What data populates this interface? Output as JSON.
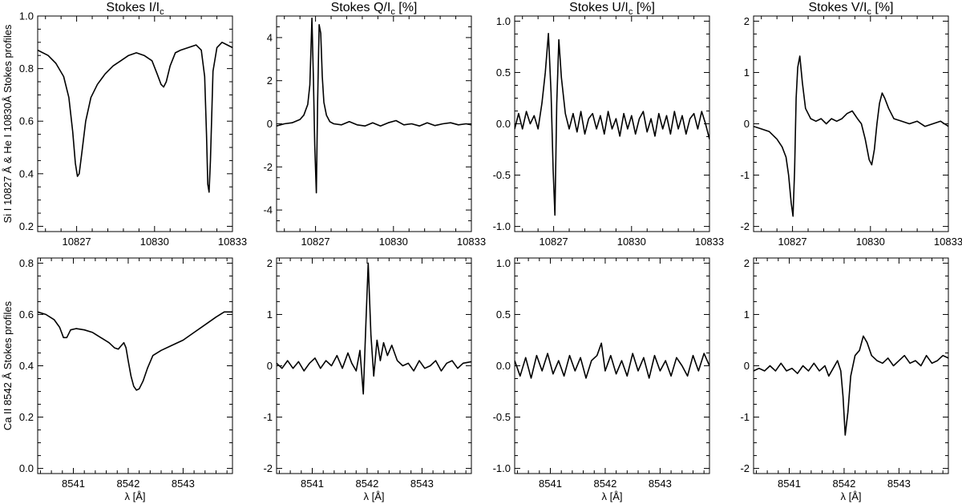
{
  "figure": {
    "row_labels": [
      "Si I 10827 Å & He I 10830Å Stokes profiles",
      "Ca II 8542 Å Stokes profiles"
    ],
    "column_titles": [
      {
        "main": "Stokes I/I",
        "sub": "c",
        "suffix": ""
      },
      {
        "main": "Stokes Q/I",
        "sub": "c",
        "suffix": " [%]"
      },
      {
        "main": "Stokes U/I",
        "sub": "c",
        "suffix": " [%]"
      },
      {
        "main": "Stokes V/I",
        "sub": "c",
        "suffix": " [%]"
      }
    ],
    "bottom_xlabel": "λ [Å]"
  },
  "chart_data": [
    {
      "id": "p00",
      "type": "line",
      "row": 0,
      "col": 0,
      "xlim": [
        10825.5,
        10833
      ],
      "ylim": [
        0.18,
        1.0
      ],
      "xticks": [
        10827,
        10830,
        10833
      ],
      "yticks": [
        0.2,
        0.4,
        0.6,
        0.8,
        1.0
      ],
      "xticklabels": [
        "10827",
        "10830",
        "10833"
      ],
      "yticklabels": [
        "0.2",
        "0.4",
        "0.6",
        "0.8",
        "1.0"
      ],
      "x": [
        10825.5,
        10825.9,
        10826.2,
        10826.5,
        10826.7,
        10826.85,
        10826.95,
        10827.03,
        10827.1,
        10827.2,
        10827.35,
        10827.55,
        10827.8,
        10828.1,
        10828.4,
        10828.7,
        10829.0,
        10829.3,
        10829.6,
        10829.9,
        10830.1,
        10830.25,
        10830.35,
        10830.45,
        10830.6,
        10830.8,
        10831.0,
        10831.3,
        10831.6,
        10831.8,
        10831.93,
        10832.0,
        10832.05,
        10832.1,
        10832.15,
        10832.25,
        10832.4,
        10832.6,
        10832.8,
        10833.0
      ],
      "y": [
        0.87,
        0.85,
        0.82,
        0.77,
        0.69,
        0.56,
        0.44,
        0.39,
        0.4,
        0.48,
        0.6,
        0.69,
        0.74,
        0.78,
        0.81,
        0.83,
        0.85,
        0.86,
        0.85,
        0.83,
        0.78,
        0.74,
        0.73,
        0.75,
        0.81,
        0.86,
        0.87,
        0.88,
        0.89,
        0.87,
        0.77,
        0.55,
        0.36,
        0.33,
        0.45,
        0.79,
        0.88,
        0.9,
        0.89,
        0.88
      ]
    },
    {
      "id": "p01",
      "type": "line",
      "row": 0,
      "col": 1,
      "xlim": [
        10825.5,
        10833
      ],
      "ylim": [
        -5.0,
        5.0
      ],
      "xticks": [
        10827,
        10830,
        10833
      ],
      "yticks": [
        -4,
        -2,
        0,
        2,
        4
      ],
      "xticklabels": [
        "10827",
        "10830",
        "10833"
      ],
      "yticklabels": [
        "-4",
        "-2",
        "0",
        "2",
        "4"
      ],
      "x": [
        10825.5,
        10825.8,
        10826.1,
        10826.4,
        10826.55,
        10826.7,
        10826.78,
        10826.86,
        10826.92,
        10826.97,
        10827.03,
        10827.08,
        10827.14,
        10827.2,
        10827.26,
        10827.32,
        10827.42,
        10827.55,
        10827.7,
        10828.0,
        10828.3,
        10828.6,
        10828.9,
        10829.2,
        10829.5,
        10829.8,
        10830.1,
        10830.4,
        10830.7,
        10831.0,
        10831.3,
        10831.6,
        10831.9,
        10832.2,
        10832.5,
        10832.8,
        10833.0
      ],
      "y": [
        -0.1,
        0.0,
        0.05,
        0.2,
        0.4,
        0.9,
        1.8,
        4.9,
        2.0,
        -1.0,
        -3.2,
        1.0,
        4.6,
        4.2,
        2.2,
        1.0,
        0.4,
        0.1,
        0.0,
        -0.05,
        0.1,
        -0.05,
        -0.1,
        0.05,
        -0.1,
        0.05,
        0.15,
        -0.05,
        0.0,
        -0.1,
        0.05,
        -0.08,
        0.0,
        0.05,
        -0.05,
        0.0,
        -0.05
      ]
    },
    {
      "id": "p02",
      "type": "line",
      "row": 0,
      "col": 2,
      "xlim": [
        10825.5,
        10833
      ],
      "ylim": [
        -1.05,
        1.05
      ],
      "xticks": [
        10827,
        10830,
        10833
      ],
      "yticks": [
        -1.0,
        -0.5,
        0.0,
        0.5,
        1.0
      ],
      "xticklabels": [
        "10827",
        "10830",
        "10833"
      ],
      "yticklabels": [
        "-1.0",
        "-0.5",
        "0.0",
        "0.5",
        "1.0"
      ],
      "x": [
        10825.5,
        10825.65,
        10825.8,
        10825.95,
        10826.1,
        10826.25,
        10826.4,
        10826.55,
        10826.68,
        10826.8,
        10826.9,
        10826.98,
        10827.05,
        10827.12,
        10827.2,
        10827.3,
        10827.45,
        10827.6,
        10827.75,
        10827.9,
        10828.05,
        10828.2,
        10828.35,
        10828.5,
        10828.65,
        10828.8,
        10828.95,
        10829.1,
        10829.25,
        10829.4,
        10829.55,
        10829.7,
        10829.85,
        10830.0,
        10830.15,
        10830.3,
        10830.45,
        10830.6,
        10830.75,
        10830.9,
        10831.05,
        10831.2,
        10831.35,
        10831.5,
        10831.65,
        10831.8,
        10831.95,
        10832.1,
        10832.25,
        10832.4,
        10832.55,
        10832.7,
        10832.85,
        10833.0
      ],
      "y": [
        -0.05,
        0.1,
        -0.05,
        0.12,
        0.0,
        0.08,
        -0.05,
        0.2,
        0.5,
        0.88,
        0.3,
        -0.45,
        -0.89,
        0.2,
        0.82,
        0.45,
        0.1,
        -0.05,
        0.1,
        -0.08,
        0.12,
        -0.1,
        0.05,
        0.1,
        -0.05,
        0.08,
        -0.1,
        0.12,
        -0.05,
        0.05,
        -0.12,
        0.1,
        -0.05,
        0.08,
        -0.1,
        0.05,
        0.12,
        -0.08,
        0.05,
        -0.12,
        0.1,
        -0.05,
        0.08,
        -0.1,
        0.12,
        -0.05,
        0.08,
        -0.1,
        0.05,
        0.1,
        -0.05,
        0.12,
        0.0,
        -0.15
      ]
    },
    {
      "id": "p03",
      "type": "line",
      "row": 0,
      "col": 3,
      "xlim": [
        10825.5,
        10833
      ],
      "ylim": [
        -2.1,
        2.1
      ],
      "xticks": [
        10827,
        10830,
        10833
      ],
      "yticks": [
        -2,
        -1,
        0,
        1,
        2
      ],
      "xticklabels": [
        "10827",
        "10830",
        "10833"
      ],
      "yticklabels": [
        "-2",
        "-1",
        "0",
        "1",
        "2"
      ],
      "x": [
        10825.5,
        10825.8,
        10826.1,
        10826.4,
        10826.6,
        10826.75,
        10826.85,
        10826.95,
        10827.02,
        10827.08,
        10827.14,
        10827.2,
        10827.28,
        10827.38,
        10827.5,
        10827.7,
        10827.9,
        10828.1,
        10828.3,
        10828.5,
        10828.7,
        10828.9,
        10829.1,
        10829.3,
        10829.5,
        10829.65,
        10829.8,
        10829.95,
        10830.05,
        10830.15,
        10830.25,
        10830.35,
        10830.45,
        10830.55,
        10830.7,
        10830.9,
        10831.2,
        10831.5,
        10831.8,
        10832.1,
        10832.4,
        10832.7,
        10833.0
      ],
      "y": [
        -0.05,
        -0.1,
        -0.15,
        -0.3,
        -0.45,
        -0.65,
        -1.0,
        -1.55,
        -1.8,
        -0.9,
        0.5,
        1.1,
        1.32,
        0.8,
        0.3,
        0.1,
        0.05,
        0.1,
        0.0,
        0.1,
        0.05,
        0.1,
        0.2,
        0.25,
        0.1,
        0.0,
        -0.3,
        -0.7,
        -0.8,
        -0.5,
        0.0,
        0.4,
        0.6,
        0.5,
        0.3,
        0.1,
        0.05,
        0.0,
        0.05,
        -0.05,
        0.0,
        0.05,
        -0.05
      ]
    },
    {
      "id": "p10",
      "type": "line",
      "row": 1,
      "col": 0,
      "xlim": [
        8540.35,
        8543.9
      ],
      "ylim": [
        -0.02,
        0.82
      ],
      "xticks": [
        8541,
        8542,
        8543
      ],
      "yticks": [
        0.0,
        0.2,
        0.4,
        0.6,
        0.8
      ],
      "xticklabels": [
        "8541",
        "8542",
        "8543"
      ],
      "yticklabels": [
        "0.0",
        "0.2",
        "0.4",
        "0.6",
        "0.8"
      ],
      "x": [
        8540.35,
        8540.5,
        8540.65,
        8540.75,
        8540.82,
        8540.88,
        8540.95,
        8541.05,
        8541.2,
        8541.35,
        8541.5,
        8541.65,
        8541.75,
        8541.82,
        8541.88,
        8541.92,
        8541.96,
        8542.0,
        8542.05,
        8542.1,
        8542.15,
        8542.2,
        8542.27,
        8542.35,
        8542.45,
        8542.6,
        8542.8,
        8543.0,
        8543.2,
        8543.4,
        8543.6,
        8543.75,
        8543.9
      ],
      "y": [
        0.61,
        0.6,
        0.58,
        0.55,
        0.51,
        0.51,
        0.54,
        0.545,
        0.54,
        0.53,
        0.51,
        0.49,
        0.47,
        0.465,
        0.48,
        0.49,
        0.47,
        0.42,
        0.36,
        0.32,
        0.305,
        0.31,
        0.34,
        0.39,
        0.44,
        0.46,
        0.48,
        0.5,
        0.53,
        0.56,
        0.59,
        0.61,
        0.61
      ]
    },
    {
      "id": "p11",
      "type": "line",
      "row": 1,
      "col": 1,
      "xlim": [
        8540.35,
        8543.9
      ],
      "ylim": [
        -2.1,
        2.1
      ],
      "xticks": [
        8541,
        8542,
        8543
      ],
      "yticks": [
        -2,
        -1,
        0,
        1,
        2
      ],
      "xticklabels": [
        "8541",
        "8542",
        "8543"
      ],
      "yticklabels": [
        "-2",
        "-1",
        "0",
        "1",
        "2"
      ],
      "x": [
        8540.35,
        8540.45,
        8540.55,
        8540.65,
        8540.75,
        8540.85,
        8540.95,
        8541.05,
        8541.15,
        8541.25,
        8541.35,
        8541.45,
        8541.55,
        8541.65,
        8541.72,
        8541.8,
        8541.87,
        8541.93,
        8541.98,
        8542.02,
        8542.07,
        8542.12,
        8542.18,
        8542.24,
        8542.3,
        8542.37,
        8542.45,
        8542.55,
        8542.65,
        8542.75,
        8542.85,
        8542.95,
        8543.05,
        8543.15,
        8543.25,
        8543.35,
        8543.45,
        8543.55,
        8543.65,
        8543.75,
        8543.9
      ],
      "y": [
        0.05,
        -0.05,
        0.1,
        -0.05,
        0.08,
        -0.1,
        0.05,
        0.15,
        -0.05,
        0.1,
        0.0,
        0.2,
        -0.05,
        0.25,
        0.05,
        -0.1,
        0.3,
        -0.55,
        0.9,
        2.0,
        0.6,
        -0.2,
        0.5,
        0.1,
        0.45,
        0.2,
        0.4,
        0.1,
        0.0,
        0.05,
        -0.1,
        0.1,
        -0.05,
        0.0,
        0.1,
        -0.1,
        0.05,
        0.1,
        -0.05,
        0.05,
        0.08
      ]
    },
    {
      "id": "p12",
      "type": "line",
      "row": 1,
      "col": 2,
      "xlim": [
        8540.35,
        8543.9
      ],
      "ylim": [
        -1.05,
        1.05
      ],
      "xticks": [
        8541,
        8542,
        8543
      ],
      "yticks": [
        -1.0,
        -0.5,
        0.0,
        0.5,
        1.0
      ],
      "xticklabels": [
        "8541",
        "8542",
        "8543"
      ],
      "yticklabels": [
        "-1.0",
        "-0.5",
        "0.0",
        "0.5",
        "1.0"
      ],
      "x": [
        8540.35,
        8540.45,
        8540.55,
        8540.65,
        8540.75,
        8540.85,
        8540.95,
        8541.05,
        8541.15,
        8541.25,
        8541.35,
        8541.45,
        8541.55,
        8541.65,
        8541.75,
        8541.85,
        8541.93,
        8542.0,
        8542.1,
        8542.2,
        8542.3,
        8542.4,
        8542.5,
        8542.6,
        8542.7,
        8542.8,
        8542.9,
        8543.0,
        8543.1,
        8543.2,
        8543.3,
        8543.4,
        8543.5,
        8543.6,
        8543.7,
        8543.8,
        8543.9
      ],
      "y": [
        0.05,
        -0.1,
        0.08,
        -0.12,
        0.1,
        -0.05,
        0.12,
        -0.08,
        0.05,
        -0.1,
        0.1,
        -0.05,
        0.08,
        -0.12,
        0.05,
        0.1,
        0.22,
        -0.05,
        0.1,
        -0.08,
        0.05,
        -0.1,
        0.12,
        -0.05,
        0.08,
        -0.12,
        0.1,
        -0.05,
        0.05,
        -0.1,
        0.08,
        0.0,
        -0.1,
        0.1,
        -0.05,
        0.12,
        0.0
      ]
    },
    {
      "id": "p13",
      "type": "line",
      "row": 1,
      "col": 3,
      "xlim": [
        8540.35,
        8543.9
      ],
      "ylim": [
        -2.1,
        2.1
      ],
      "xticks": [
        8541,
        8542,
        8543
      ],
      "yticks": [
        -2,
        -1,
        0,
        1,
        2
      ],
      "xticklabels": [
        "8541",
        "8542",
        "8543"
      ],
      "yticklabels": [
        "-2",
        "-1",
        "0",
        "1",
        "2"
      ],
      "x": [
        8540.35,
        8540.45,
        8540.55,
        8540.65,
        8540.75,
        8540.85,
        8540.95,
        8541.05,
        8541.15,
        8541.25,
        8541.35,
        8541.45,
        8541.55,
        8541.65,
        8541.72,
        8541.8,
        8541.88,
        8541.94,
        8541.98,
        8542.02,
        8542.07,
        8542.12,
        8542.2,
        8542.28,
        8542.35,
        8542.42,
        8542.5,
        8542.6,
        8542.7,
        8542.8,
        8542.9,
        8543.0,
        8543.1,
        8543.2,
        8543.3,
        8543.4,
        8543.5,
        8543.6,
        8543.7,
        8543.8,
        8543.9
      ],
      "y": [
        -0.1,
        -0.05,
        -0.1,
        0.0,
        -0.1,
        0.05,
        -0.1,
        -0.05,
        -0.15,
        0.0,
        -0.1,
        0.05,
        -0.1,
        0.0,
        -0.2,
        -0.05,
        0.1,
        -0.1,
        -0.6,
        -1.35,
        -0.9,
        -0.2,
        0.2,
        0.3,
        0.58,
        0.45,
        0.2,
        0.1,
        0.05,
        0.15,
        0.0,
        0.1,
        0.2,
        0.05,
        0.1,
        0.0,
        0.2,
        0.05,
        0.1,
        0.2,
        0.15
      ]
    }
  ]
}
